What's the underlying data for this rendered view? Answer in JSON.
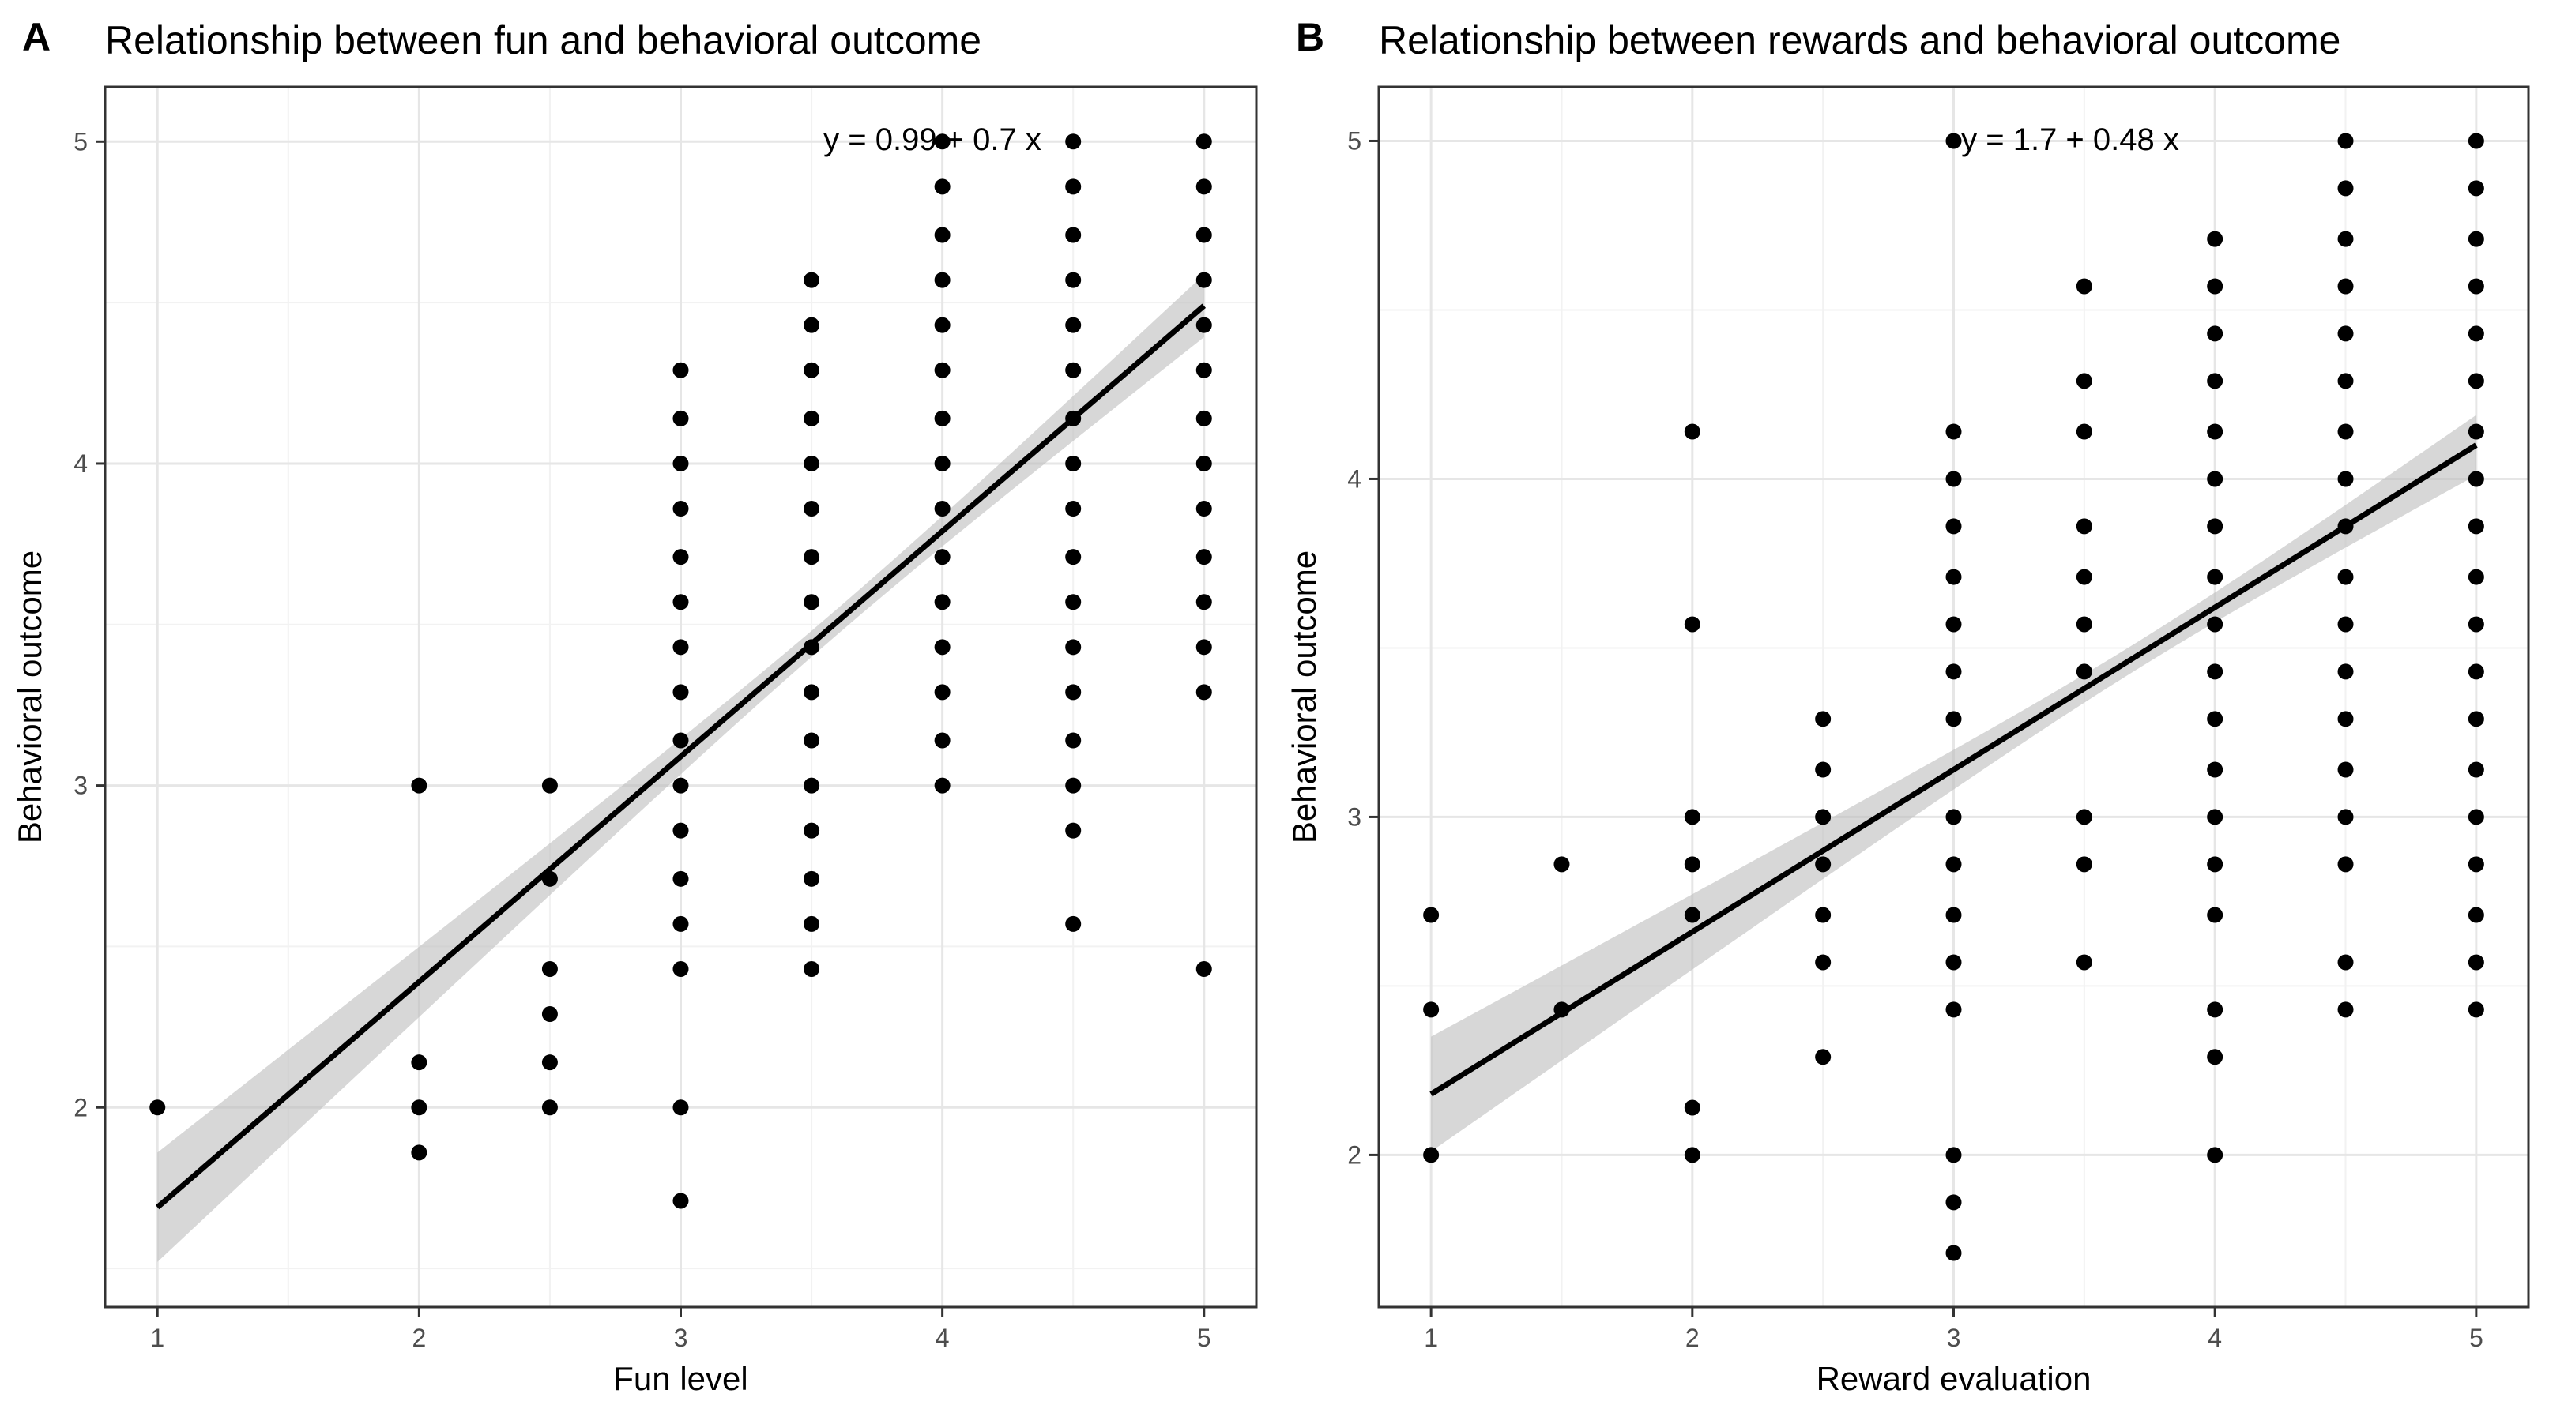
{
  "panels": [
    {
      "letter": "A",
      "title": "Relationship between fun and behavioral outcome",
      "equation": "y = 0.99 + 0.7 x"
    },
    {
      "letter": "B",
      "title": "Relationship between rewards and behavioral outcome",
      "equation": "y = 1.7 + 0.48 x"
    }
  ],
  "chart_data": [
    {
      "type": "scatter",
      "title": "Relationship between fun and behavioral outcome",
      "xlabel": "Fun level",
      "ylabel": "Behavioral outcome",
      "xlim": [
        0.8,
        5.2
      ],
      "ylim": [
        1.38,
        5.17
      ],
      "xticks": [
        1,
        2,
        3,
        4,
        5
      ],
      "yticks": [
        2,
        3,
        4,
        5
      ],
      "grid": true,
      "annotation": "y = 0.99 + 0.7 x",
      "regression": {
        "intercept": 0.99,
        "slope": 0.7,
        "x_range": [
          1,
          5
        ],
        "ci_halfwidth_ends": 0.17,
        "ci_halfwidth_mid": 0.04,
        "x_mean": 3.6
      },
      "points": [
        {
          "x": 1,
          "y": [
            2.0
          ]
        },
        {
          "x": 2,
          "y": [
            3.0,
            2.14,
            2.0,
            1.86
          ]
        },
        {
          "x": 2.5,
          "y": [
            3.0,
            2.71,
            2.43,
            2.29,
            2.14,
            2.0
          ]
        },
        {
          "x": 3,
          "y": [
            4.29,
            4.14,
            4.0,
            3.86,
            3.71,
            3.57,
            3.43,
            3.29,
            3.14,
            3.0,
            2.86,
            2.71,
            2.57,
            2.43,
            2.0,
            1.71
          ]
        },
        {
          "x": 3.5,
          "y": [
            4.57,
            4.43,
            4.29,
            4.14,
            4.0,
            3.86,
            3.71,
            3.57,
            3.43,
            3.29,
            3.14,
            3.0,
            2.86,
            2.71,
            2.57,
            2.43
          ]
        },
        {
          "x": 4,
          "y": [
            5.0,
            4.86,
            4.71,
            4.57,
            4.43,
            4.29,
            4.14,
            4.0,
            3.86,
            3.71,
            3.57,
            3.43,
            3.29,
            3.14,
            3.0
          ]
        },
        {
          "x": 4.5,
          "y": [
            5.0,
            4.86,
            4.71,
            4.57,
            4.43,
            4.29,
            4.14,
            4.0,
            3.86,
            3.71,
            3.57,
            3.43,
            3.29,
            3.14,
            3.0,
            2.86,
            2.57
          ]
        },
        {
          "x": 5,
          "y": [
            5.0,
            4.86,
            4.71,
            4.57,
            4.43,
            4.29,
            4.14,
            4.0,
            3.86,
            3.71,
            3.57,
            3.43,
            3.29,
            2.43
          ]
        }
      ]
    },
    {
      "type": "scatter",
      "title": "Relationship between rewards and behavioral outcome",
      "xlabel": "Reward evaluation",
      "ylabel": "Behavioral outcome",
      "xlim": [
        0.8,
        5.2
      ],
      "ylim": [
        1.55,
        5.16
      ],
      "xticks": [
        1,
        2,
        3,
        4,
        5
      ],
      "yticks": [
        2,
        3,
        4,
        5
      ],
      "grid": true,
      "annotation": "y = 1.7 + 0.48 x",
      "regression": {
        "intercept": 1.7,
        "slope": 0.48,
        "x_range": [
          1,
          5
        ],
        "ci_halfwidth_ends": 0.17,
        "ci_halfwidth_mid": 0.04,
        "x_mean": 3.7
      },
      "points": [
        {
          "x": 1,
          "y": [
            2.71,
            2.43,
            2.0
          ]
        },
        {
          "x": 1.5,
          "y": [
            2.86,
            2.43
          ]
        },
        {
          "x": 2,
          "y": [
            4.14,
            3.57,
            3.0,
            2.86,
            2.71,
            2.14,
            2.0
          ]
        },
        {
          "x": 2.5,
          "y": [
            3.29,
            3.14,
            3.0,
            2.86,
            2.71,
            2.57,
            2.29
          ]
        },
        {
          "x": 3,
          "y": [
            5.0,
            4.14,
            4.0,
            3.86,
            3.71,
            3.57,
            3.43,
            3.29,
            3.0,
            2.86,
            2.71,
            2.57,
            2.43,
            2.0,
            1.86,
            1.71
          ]
        },
        {
          "x": 3.5,
          "y": [
            4.57,
            4.29,
            4.14,
            3.86,
            3.71,
            3.57,
            3.43,
            3.0,
            2.86,
            2.57
          ]
        },
        {
          "x": 4,
          "y": [
            4.71,
            4.57,
            4.43,
            4.29,
            4.14,
            4.0,
            3.86,
            3.71,
            3.57,
            3.43,
            3.29,
            3.14,
            3.0,
            2.86,
            2.71,
            2.43,
            2.29,
            2.0
          ]
        },
        {
          "x": 4.5,
          "y": [
            5.0,
            4.86,
            4.71,
            4.57,
            4.43,
            4.29,
            4.14,
            4.0,
            3.86,
            3.71,
            3.57,
            3.43,
            3.29,
            3.14,
            3.0,
            2.86,
            2.57,
            2.43
          ]
        },
        {
          "x": 5,
          "y": [
            5.0,
            4.86,
            4.71,
            4.57,
            4.43,
            4.29,
            4.14,
            4.0,
            3.86,
            3.71,
            3.57,
            3.43,
            3.29,
            3.14,
            3.0,
            2.86,
            2.71,
            2.57,
            2.43
          ]
        }
      ]
    }
  ]
}
